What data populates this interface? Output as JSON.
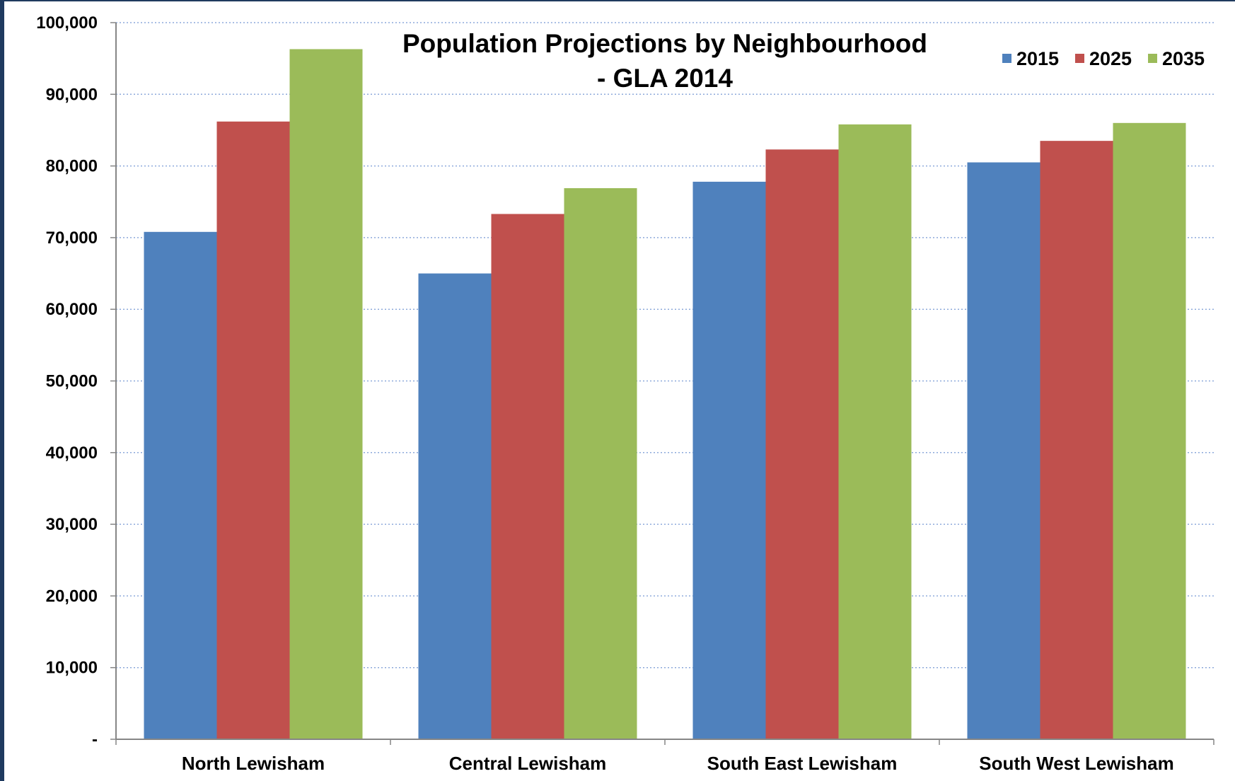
{
  "chart_data": {
    "type": "bar",
    "title_lines": [
      "Population Projections by Neighbourhood",
      "- GLA 2014"
    ],
    "xlabel": "",
    "ylabel": "",
    "categories": [
      "North Lewisham",
      "Central Lewisham",
      "South East Lewisham",
      "South West Lewisham"
    ],
    "series": [
      {
        "name": "2015",
        "color": "#4f81bd",
        "values": [
          70800,
          65000,
          77800,
          80500
        ]
      },
      {
        "name": "2025",
        "color": "#c0504d",
        "values": [
          86200,
          73300,
          82300,
          83500
        ]
      },
      {
        "name": "2035",
        "color": "#9bbb59",
        "values": [
          96300,
          76900,
          85800,
          86000
        ]
      }
    ],
    "ylim": [
      0,
      100000
    ],
    "yticks": [
      0,
      10000,
      20000,
      30000,
      40000,
      50000,
      60000,
      70000,
      80000,
      90000,
      100000
    ],
    "ytick_labels": [
      "-",
      "10,000",
      "20,000",
      "30,000",
      "40,000",
      "50,000",
      "60,000",
      "70,000",
      "80,000",
      "90,000",
      "100,000"
    ],
    "grid": "horizontal dotted",
    "legend_position": "top-right"
  }
}
